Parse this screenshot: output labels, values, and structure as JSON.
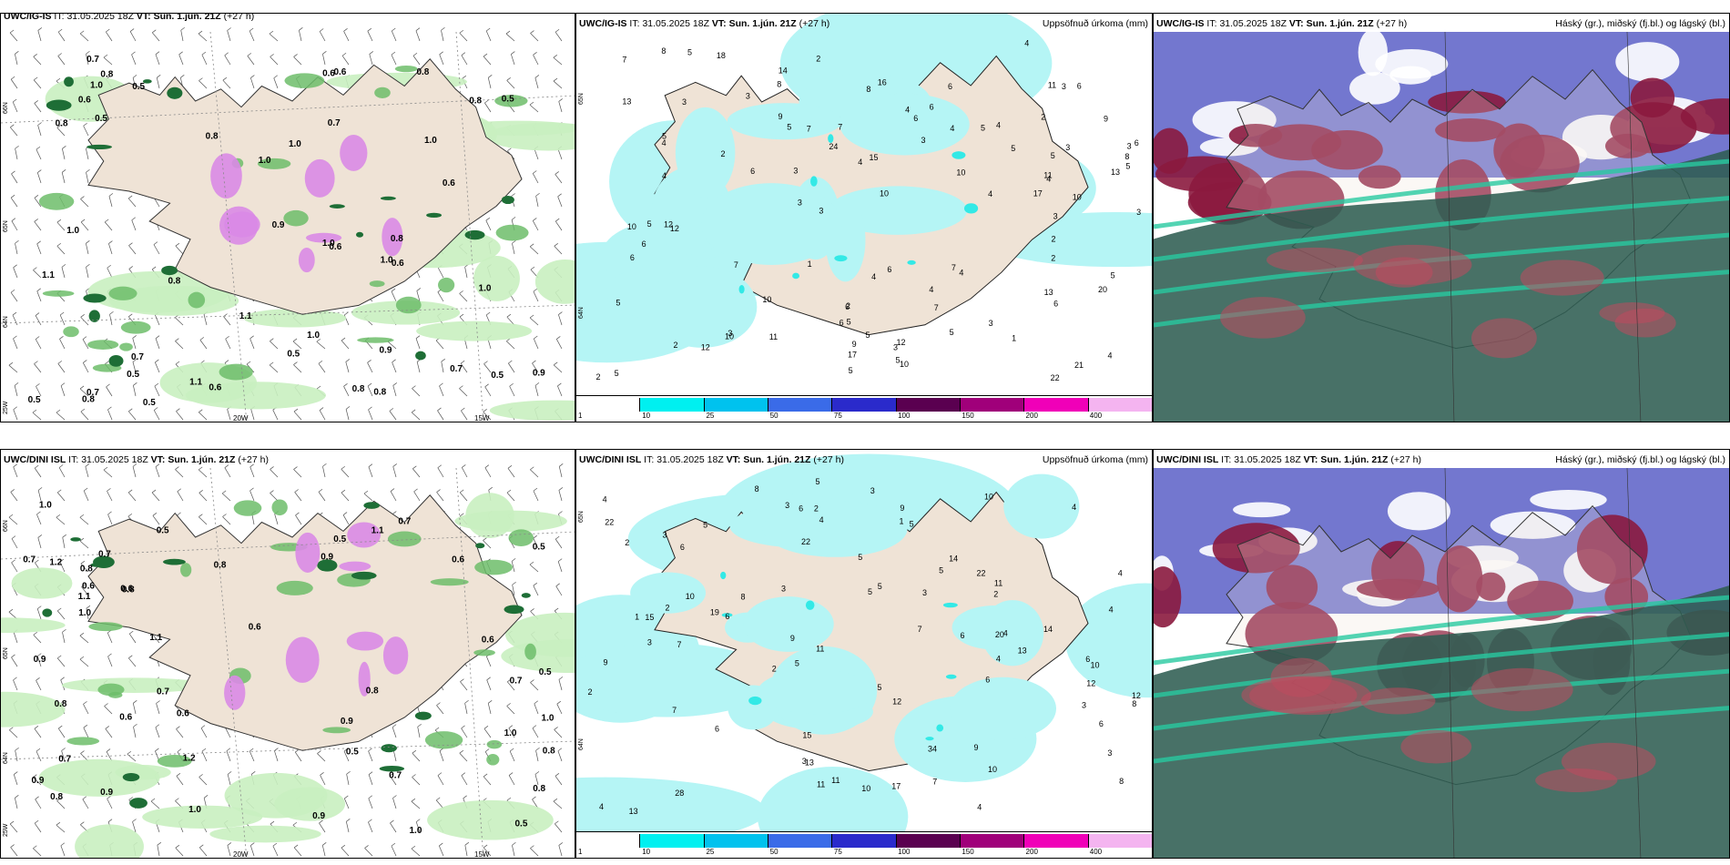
{
  "colors": {
    "land": "#efe3d6",
    "precip_light": "#c9efc0",
    "precip_mid": "#6dbd6a",
    "precip_dark": "#1e6e36",
    "snow_mix": "#d98ae6",
    "accum_base": "#b5f5f5",
    "accum_10": "#33e9e6",
    "cloud_high": "#5a5fc7",
    "cloud_mid": "#8b1a3e",
    "cloud_low": "#2f5d52",
    "cloud_low_bright": "#28c9a0"
  },
  "panels": [
    {
      "id": "p1",
      "model": "UWC/IG-IS",
      "it_label": "IT:",
      "it_value": "31.05.2025 18Z",
      "vt_label": "VT:",
      "vt_value": "Sun. 1.jún. 21Z",
      "lead": "(+27 h)",
      "title": "",
      "lat_labels": [
        "66N",
        "64N",
        "65N"
      ],
      "lon_labels": [
        "20W",
        "15W"
      ],
      "side_label": "25W",
      "values": [
        "0.8",
        "0.6",
        "0.8",
        "0.5",
        "0.6",
        "1.0",
        "0.5",
        "0.9",
        "1.0",
        "0.5",
        "0.7",
        "1.1",
        "0.8",
        "0.5",
        "1.0",
        "0.6",
        "1.0",
        "0.8",
        "0.8",
        "1.0",
        "0.8",
        "0.5",
        "0.6",
        "1.1",
        "0.7",
        "0.9",
        "1.0",
        "0.5",
        "0.8",
        "1.0",
        "0.6",
        "0.8",
        "0.5",
        "0.7",
        "1.0",
        "0.8",
        "1.0",
        "0.6",
        "0.7",
        "0.5",
        "0.9",
        "0.8",
        "1.1",
        "0.7",
        "0.6"
      ]
    },
    {
      "id": "p2",
      "model": "UWC/IG-IS",
      "it_label": "IT:",
      "it_value": "31.05.2025 18Z",
      "vt_label": "VT:",
      "vt_value": "Sun. 1.jún. 21Z",
      "lead": "(+27 h)",
      "title": "Uppsöfnuð úrkoma (mm)",
      "lat_labels": [
        "65N",
        "64N"
      ],
      "colorbar": {
        "ticks": [
          "1",
          "10",
          "25",
          "50",
          "75",
          "100",
          "150",
          "200",
          "400"
        ],
        "colors": [
          "#ffffff",
          "#00f0f0",
          "#00c2ee",
          "#3a6be8",
          "#2a2acb",
          "#5a0050",
          "#a0007a",
          "#f000b8",
          "#f4b4f0"
        ]
      },
      "values": [
        "3",
        "2",
        "3",
        "2",
        "3",
        "1",
        "5",
        "3",
        "2",
        "4",
        "5",
        "6",
        "4",
        "3",
        "2",
        "5",
        "6",
        "7",
        "4",
        "5",
        "3",
        "8",
        "10",
        "6",
        "5",
        "4",
        "12",
        "10",
        "8",
        "4",
        "2",
        "3",
        "4",
        "5",
        "6",
        "7",
        "13",
        "10",
        "11",
        "15",
        "14",
        "17",
        "13",
        "12",
        "11",
        "9",
        "6",
        "4",
        "5",
        "7",
        "3",
        "6",
        "12",
        "16",
        "22",
        "24",
        "10",
        "9",
        "11",
        "13",
        "5",
        "6",
        "8",
        "7",
        "10",
        "10",
        "12",
        "4",
        "5",
        "3",
        "6",
        "5",
        "7",
        "8",
        "9",
        "6",
        "5",
        "4",
        "3",
        "2",
        "6",
        "5",
        "4",
        "5",
        "17",
        "20",
        "18",
        "21",
        "10",
        "7",
        "6",
        "5",
        "3",
        "2",
        "4",
        "3",
        "1",
        "2",
        "3",
        "5",
        "4",
        "6",
        "5",
        "4",
        "3"
      ]
    },
    {
      "id": "p3",
      "model": "UWC/IG-IS",
      "it_label": "IT:",
      "it_value": "31.05.2025 18Z",
      "vt_label": "VT:",
      "vt_value": "Sun. 1.jún. 21Z",
      "lead": "(+27 h)",
      "title": "Háský (gr.), miðský (fj.bl.) og lágský (bl.)"
    },
    {
      "id": "p4",
      "model": "UWC/DINI ISL",
      "it_label": "IT:",
      "it_value": "31.05.2025 18Z",
      "vt_label": "VT:",
      "vt_value": "Sun. 1.jún. 21Z",
      "lead": "(+27 h)",
      "title": "",
      "lat_labels": [
        "66N",
        "64N",
        "65N"
      ],
      "lon_labels": [
        "20W",
        "15W"
      ],
      "side_label": "25W",
      "values": [
        "0.8",
        "0.6",
        "1.0",
        "0.5",
        "0.8",
        "0.7",
        "0.9",
        "1.0",
        "0.6",
        "0.5",
        "0.7",
        "1.1",
        "0.8",
        "0.6",
        "0.9",
        "1.2",
        "0.5",
        "0.7",
        "1.0",
        "0.8",
        "0.9",
        "0.6",
        "0.7",
        "1.0",
        "0.5",
        "0.8",
        "1.1",
        "0.6",
        "0.9",
        "1.0",
        "0.7",
        "0.8",
        "0.5",
        "0.9",
        "1.2",
        "0.7",
        "0.6",
        "0.5",
        "0.8",
        "1.0",
        "0.9",
        "0.6",
        "0.7",
        "1.1",
        "0.8"
      ]
    },
    {
      "id": "p5",
      "model": "UWC/DINI ISL",
      "it_label": "IT:",
      "it_value": "31.05.2025 18Z",
      "vt_label": "VT:",
      "vt_value": "Sun. 1.jún. 21Z",
      "lead": "(+27 h)",
      "title": "Uppsöfnuð úrkoma (mm)",
      "lat_labels": [
        "65N",
        "64N"
      ],
      "colorbar": {
        "ticks": [
          "1",
          "10",
          "25",
          "50",
          "75",
          "100",
          "150",
          "200",
          "400"
        ],
        "colors": [
          "#ffffff",
          "#00f0f0",
          "#00c2ee",
          "#3a6be8",
          "#2a2acb",
          "#5a0050",
          "#a0007a",
          "#f000b8",
          "#f4b4f0"
        ]
      },
      "values": [
        "3",
        "2",
        "1",
        "3",
        "5",
        "4",
        "2",
        "6",
        "5",
        "3",
        "4",
        "2",
        "8",
        "7",
        "5",
        "6",
        "4",
        "3",
        "10",
        "6",
        "8",
        "11",
        "9",
        "10",
        "12",
        "14",
        "13",
        "12",
        "15",
        "13",
        "11",
        "10",
        "9",
        "8",
        "7",
        "6",
        "5",
        "4",
        "3",
        "22",
        "14",
        "11",
        "12",
        "13",
        "10",
        "11",
        "9",
        "7",
        "6",
        "5",
        "4",
        "20",
        "17",
        "15",
        "19",
        "22",
        "10",
        "9",
        "8",
        "6",
        "5",
        "7",
        "4",
        "3",
        "2",
        "5",
        "6",
        "4",
        "3",
        "28",
        "34",
        "22",
        "5",
        "4",
        "3",
        "2",
        "1",
        "3",
        "4",
        "5",
        "6",
        "2"
      ]
    },
    {
      "id": "p6",
      "model": "UWC/DINI ISL",
      "it_label": "IT:",
      "it_value": "31.05.2025 18Z",
      "vt_label": "VT:",
      "vt_value": "Sun. 1.jún. 21Z",
      "lead": "(+27 h)",
      "title": "Háský (gr.), miðský (fj.bl.) og lágský (bl.)"
    }
  ]
}
